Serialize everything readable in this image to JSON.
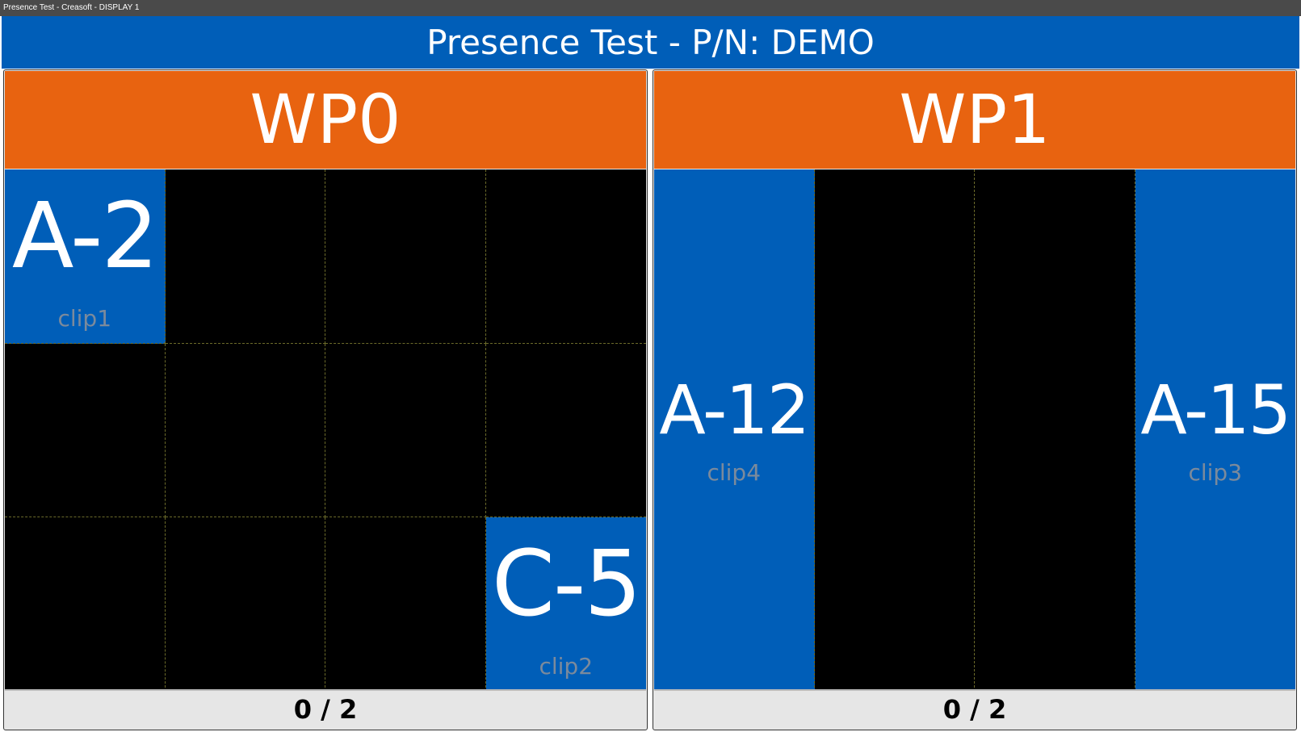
{
  "window_title": "Presence Test - Creasoft - DISPLAY 1",
  "header": {
    "title": "Presence Test - P/N: DEMO"
  },
  "colors": {
    "header": "#005eb8",
    "panel_header": "#e86310",
    "present_cell": "#005eb8",
    "empty_cell": "#000000"
  },
  "panels": [
    {
      "name": "WP0",
      "count": "0 / 2",
      "rows": 3,
      "cols": 4,
      "cells": [
        {
          "row": 1,
          "col": 1,
          "code": "A-2",
          "clip": "clip1"
        },
        {
          "row": 3,
          "col": 4,
          "code": "C-5",
          "clip": "clip2"
        }
      ]
    },
    {
      "name": "WP1",
      "count": "0 / 2",
      "rows": 1,
      "cols": 4,
      "cells": [
        {
          "row": 1,
          "col": 1,
          "code": "A-12",
          "clip": "clip4"
        },
        {
          "row": 1,
          "col": 4,
          "code": "A-15",
          "clip": "clip3"
        }
      ]
    }
  ]
}
